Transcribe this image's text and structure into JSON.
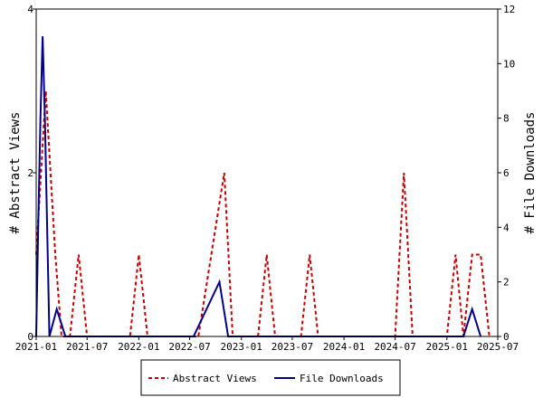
{
  "chart_data": {
    "type": "line",
    "title": "",
    "xlabel": "",
    "ylabel_left": "# Abstract Views",
    "ylabel_right": "# File Downloads",
    "ylim_left": [
      0,
      4
    ],
    "ylim_right": [
      0,
      12
    ],
    "yticks_left": [
      "0",
      "2",
      "4"
    ],
    "yticks_right": [
      "0",
      "2",
      "4",
      "6",
      "8",
      "10",
      "12"
    ],
    "xlim": [
      "2021-01-01",
      "2025-07-01"
    ],
    "xticks": [
      "2021-01",
      "2021-07",
      "2022-01",
      "2022-07",
      "2023-01",
      "2023-07",
      "2024-01",
      "2024-07",
      "2025-01",
      "2025-07"
    ],
    "legend_position": "bottom",
    "series": [
      {
        "name": "Abstract Views",
        "axis": "left",
        "color": "#cc0000",
        "style": "dashed",
        "points": [
          [
            "2021-01-01",
            1
          ],
          [
            "2021-01-18",
            2
          ],
          [
            "2021-02-04",
            3
          ],
          [
            "2021-02-21",
            2
          ],
          [
            "2021-03-10",
            1
          ],
          [
            "2021-04-01",
            0
          ],
          [
            "2021-05-01",
            0
          ],
          [
            "2021-06-01",
            1
          ],
          [
            "2021-07-01",
            0
          ],
          [
            "2021-12-01",
            0
          ],
          [
            "2022-01-01",
            1
          ],
          [
            "2022-02-01",
            0
          ],
          [
            "2022-08-01",
            0
          ],
          [
            "2022-11-01",
            2
          ],
          [
            "2022-12-01",
            0
          ],
          [
            "2023-03-01",
            0
          ],
          [
            "2023-04-01",
            1
          ],
          [
            "2023-05-01",
            0
          ],
          [
            "2023-08-01",
            0
          ],
          [
            "2023-09-01",
            1
          ],
          [
            "2023-10-01",
            0
          ],
          [
            "2024-07-01",
            0
          ],
          [
            "2024-08-01",
            2
          ],
          [
            "2024-09-01",
            0
          ],
          [
            "2025-01-01",
            0
          ],
          [
            "2025-02-01",
            1
          ],
          [
            "2025-03-01",
            0
          ],
          [
            "2025-04-01",
            1
          ],
          [
            "2025-05-01",
            1
          ],
          [
            "2025-06-01",
            0
          ]
        ]
      },
      {
        "name": "File Downloads",
        "axis": "right",
        "color": "#00008b",
        "style": "solid",
        "points": [
          [
            "2021-01-01",
            0
          ],
          [
            "2021-01-08",
            4
          ],
          [
            "2021-01-16",
            8
          ],
          [
            "2021-01-24",
            11
          ],
          [
            "2021-02-01",
            8
          ],
          [
            "2021-02-09",
            4
          ],
          [
            "2021-02-17",
            0
          ],
          [
            "2021-03-15",
            1
          ],
          [
            "2021-04-15",
            0
          ],
          [
            "2022-07-15",
            0
          ],
          [
            "2022-10-15",
            2
          ],
          [
            "2022-11-15",
            0
          ],
          [
            "2025-03-01",
            0
          ],
          [
            "2025-04-01",
            1
          ],
          [
            "2025-05-01",
            0
          ]
        ]
      }
    ]
  }
}
